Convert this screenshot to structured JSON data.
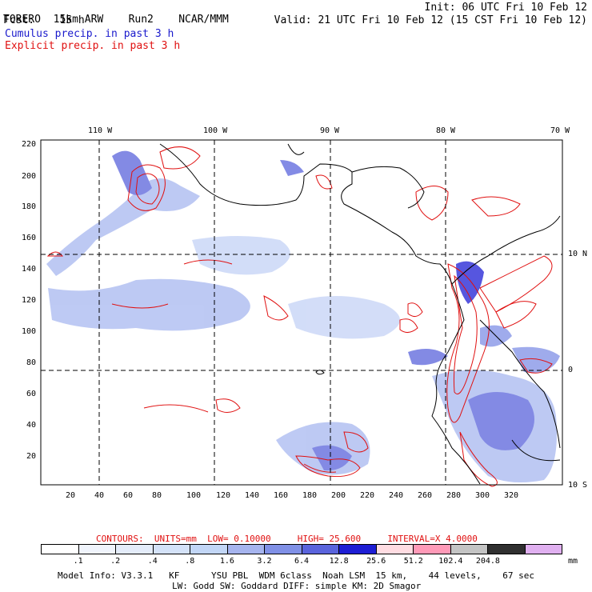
{
  "header": {
    "model": "TORERO",
    "resolution": "15km ARW",
    "run": "Run2",
    "org": "NCAR/MMM",
    "init": "Init: 06 UTC Fri 10 Feb 12",
    "fcst_label": "Fcst:",
    "fcst_value": "15 h",
    "valid": "Valid: 21 UTC Fri 10 Feb 12 (15 CST Fri 10 Feb 12)",
    "line_cumulus": "Cumulus precip. in past 3 h",
    "line_explicit": "Explicit precip. in past 3 h"
  },
  "axes": {
    "top_lon": [
      "110 W",
      "100 W",
      "90 W",
      "80 W",
      "70 W"
    ],
    "right_lat": [
      "10 N",
      "0",
      "10 S"
    ],
    "left_y": [
      "220",
      "200",
      "180",
      "160",
      "140",
      "120",
      "100",
      "80",
      "60",
      "40",
      "20"
    ],
    "bottom_x": [
      "20",
      "40",
      "60",
      "80",
      "100",
      "120",
      "140",
      "160",
      "180",
      "200",
      "220",
      "240",
      "260",
      "280",
      "300",
      "320"
    ]
  },
  "contours": {
    "label": "CONTOURS:",
    "units": "UNITS=mm",
    "low": "LOW= 0.10000",
    "high": "HIGH= 25.600",
    "interval": "INTERVAL=X 4.0000"
  },
  "colorbar": {
    "colors": [
      "#ffffff",
      "#f0f4fc",
      "#e4ecfa",
      "#d4e2f8",
      "#c2d6f6",
      "#a6b4ee",
      "#8090e6",
      "#5a64dc",
      "#1e1ed4",
      "#ffdce2",
      "#ff9ab8",
      "#c4c4c4",
      "#303030",
      "#e0b0f0"
    ],
    "labels": [
      ".1",
      ".2",
      ".4",
      ".8",
      "1.6",
      "3.2",
      "6.4",
      "12.8",
      "25.6",
      "51.2",
      "102.4",
      "204.8"
    ],
    "units": "mm"
  },
  "footer": {
    "line1": "Model Info: V3.3.1   KF      YSU PBL  WDM 6class  Noah LSM  15 km,    44 levels,    67 sec",
    "line2": "LW: Godd SW: Goddard DIFF: simple KM: 2D Smagor"
  },
  "colors": {
    "cumulus": "#1a1acc",
    "explicit": "#e01010"
  }
}
